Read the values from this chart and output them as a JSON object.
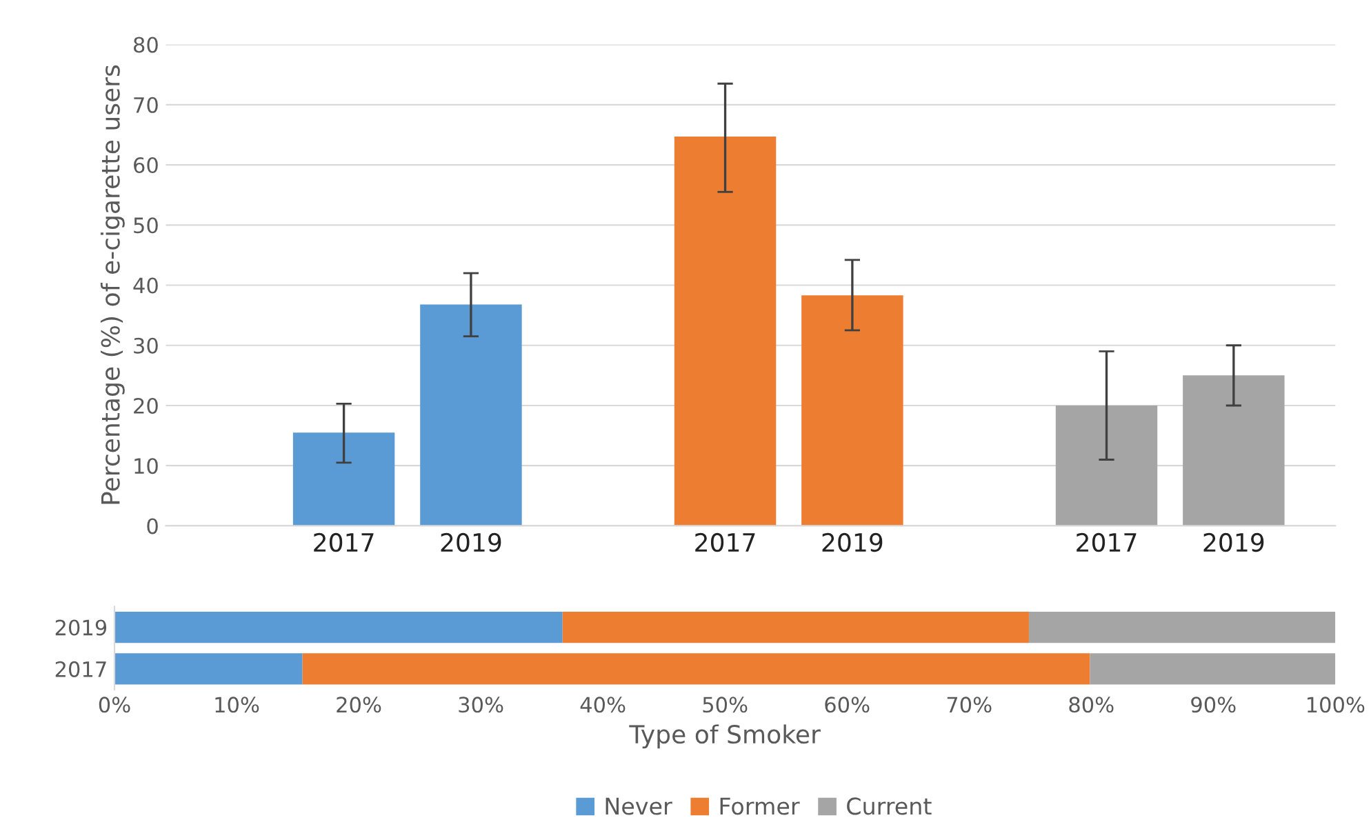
{
  "chart_data": [
    {
      "type": "bar",
      "ylabel": "Percentage (%) of e-cigarette users",
      "categories": [
        "2017",
        "2019",
        null,
        "2017",
        "2019",
        null,
        "2017",
        "2019"
      ],
      "values": [
        15.5,
        36.8,
        null,
        64.7,
        38.3,
        null,
        20.0,
        25.0
      ],
      "colors": [
        "#5b9bd5",
        "#5b9bd5",
        null,
        "#ed7d31",
        "#ed7d31",
        null,
        "#a5a5a5",
        "#a5a5a5"
      ],
      "errors": [
        [
          10.5,
          20.3
        ],
        [
          31.5,
          42.0
        ],
        null,
        [
          55.5,
          73.5
        ],
        [
          32.5,
          44.2
        ],
        null,
        [
          11.0,
          29.0
        ],
        [
          20.0,
          30.0
        ]
      ],
      "ylim": [
        0,
        80
      ],
      "yticks": [
        0,
        10,
        20,
        30,
        40,
        50,
        60,
        70,
        80
      ],
      "grid": "y"
    },
    {
      "type": "bar",
      "orientation": "horizontal",
      "stacked": true,
      "xlabel": "Type of Smoker",
      "categories": [
        "2019",
        "2017"
      ],
      "series": [
        {
          "name": "Never",
          "color": "#5b9bd5",
          "values": [
            36.7,
            15.4
          ]
        },
        {
          "name": "Former",
          "color": "#ed7d31",
          "values": [
            38.2,
            64.5
          ]
        },
        {
          "name": "Current",
          "color": "#a5a5a5",
          "values": [
            25.1,
            20.1
          ]
        }
      ],
      "xlim": [
        0,
        100
      ],
      "xticks": [
        {
          "value": 0,
          "label": "0%"
        },
        {
          "value": 10,
          "label": "10%"
        },
        {
          "value": 20,
          "label": "20%"
        },
        {
          "value": 30,
          "label": "30%"
        },
        {
          "value": 40,
          "label": "40%"
        },
        {
          "value": 50,
          "label": "50%"
        },
        {
          "value": 60,
          "label": "60%"
        },
        {
          "value": 70,
          "label": "70%"
        },
        {
          "value": 80,
          "label": "80%"
        },
        {
          "value": 90,
          "label": "90%"
        },
        {
          "value": 100,
          "label": "100%"
        }
      ],
      "legend": "bottom"
    }
  ]
}
